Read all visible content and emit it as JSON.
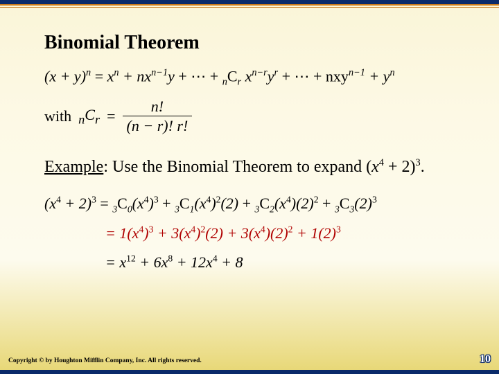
{
  "title": "Binomial Theorem",
  "expansion": {
    "lhs": "(x + y)",
    "lhs_exp": "n",
    "rhs_parts": {
      "t1_base": "x",
      "t1_exp": "n",
      "t2": " + nx",
      "t2_exp": "n−1",
      "t2_tail": "y",
      "t3": " + ⋯ + ",
      "ncr_pre": "n",
      "ncr_letter": "C",
      "ncr_post": "r",
      "t4": "x",
      "t4_exp": "n−r",
      "t4b": "y",
      "t4b_exp": "r",
      "t5": " + ⋯ + nxy",
      "t5_exp": "n−1",
      "t6": " + y",
      "t6_exp": "n"
    }
  },
  "definition": {
    "with": "with",
    "ncr_pre": "n",
    "ncr_letter": "C",
    "ncr_post": "r",
    "eq": "=",
    "num": "n!",
    "den": "(n − r)! r!"
  },
  "example": {
    "lead": "Example",
    "text": ": Use the Binomial Theorem to expand (",
    "var": "x",
    "var_exp": "4",
    "plus": " + 2)",
    "outer_exp": "3",
    "period": "."
  },
  "work": {
    "row1": {
      "lhs": "(x",
      "e1": "4",
      "plus": " + 2)",
      "e2": "3",
      "eq": " = ",
      "t1_pre": "3",
      "C": "C",
      "t1_sub": "0",
      "t1_body": "(x",
      "t1_e": "4",
      "t1_close": ")",
      "t1_pe": "3",
      "p2": " + ",
      "t2_pre": "3",
      "t2_sub": "1",
      "t2_body": "(x",
      "t2_e": "4",
      "t2_close": ")",
      "t2_pe": "2",
      "t2_tail": "(2)",
      "p3": " + ",
      "t3_pre": "3",
      "t3_sub": "2",
      "t3_body": "(x",
      "t3_e": "4",
      "t3_close": ")(2)",
      "t3_pe": "2",
      "p4": " + ",
      "t4_pre": "3",
      "t4_sub": "3",
      "t4_body": "(2)",
      "t4_pe": "3"
    },
    "row2": {
      "eq": "= 1(x",
      "e1": "4",
      "c1": ")",
      "p1": "3",
      "t2": " + 3(x",
      "e2": "4",
      "c2": ")",
      "p2": "2",
      "tail2": "(2)",
      "t3": " + 3(x",
      "e3": "4",
      "c3": ")(2)",
      "p3": "2",
      "t4": " + 1(2)",
      "p4": "3"
    },
    "row3": {
      "eq": "= x",
      "e1": "12",
      "t2": " + 6x",
      "e2": "8",
      "t3": " + 12x",
      "e3": "4",
      "t4": " + 8"
    }
  },
  "footer": {
    "copyright": "Copyright © by Houghton Mifflin Company, Inc. All rights reserved.",
    "page": "10"
  },
  "colors": {
    "frame": "#0a2a6a",
    "accent": "#cc7a1a",
    "highlight": "#b00000",
    "bg_top": "#faf5d8",
    "bg_bottom": "#e8d878"
  }
}
